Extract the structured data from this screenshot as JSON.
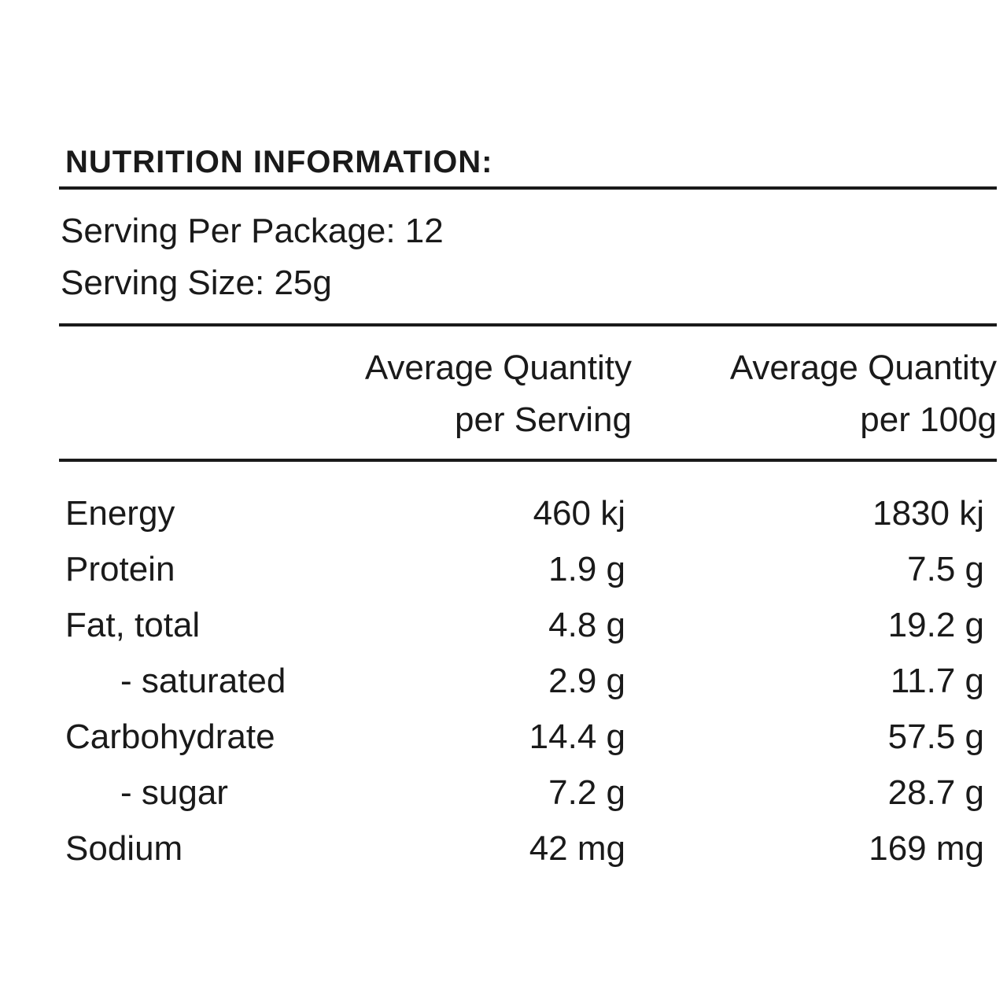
{
  "title": "NUTRITION INFORMATION:",
  "serving": {
    "per_package": "Serving Per Package: 12",
    "size": "Serving Size: 25g"
  },
  "columns": {
    "serving_line1": "Average Quantity",
    "serving_line2": "per Serving",
    "per100_line1": "Average Quantity",
    "per100_line2": "per 100g"
  },
  "rows": [
    {
      "label": "Energy",
      "per_serving": "460 kj",
      "per_100g": "1830 kj"
    },
    {
      "label": "Protein",
      "per_serving": "1.9 g",
      "per_100g": "7.5 g"
    },
    {
      "label": "Fat, total",
      "per_serving": "4.8 g",
      "per_100g": "19.2 g"
    },
    {
      "label": "- saturated",
      "per_serving": "2.9 g",
      "per_100g": "11.7 g"
    },
    {
      "label": "Carbohydrate",
      "per_serving": "14.4 g",
      "per_100g": "57.5 g"
    },
    {
      "label": "- sugar",
      "per_serving": "7.2 g",
      "per_100g": "28.7 g"
    },
    {
      "label": "Sodium",
      "per_serving": "42 mg",
      "per_100g": "169 mg"
    }
  ]
}
